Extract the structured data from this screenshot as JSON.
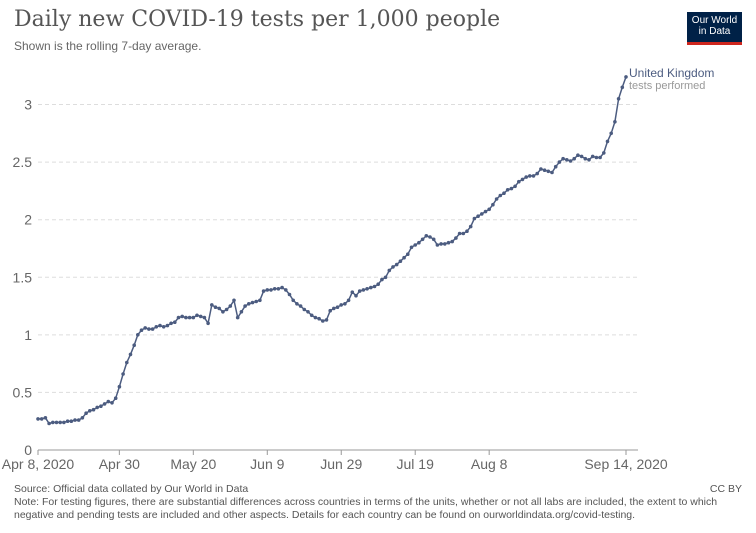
{
  "header": {
    "title": "Daily new COVID-19 tests per 1,000 people",
    "subtitle": "Shown is the rolling 7-day average."
  },
  "logo": {
    "line1": "Our World",
    "line2": "in Data",
    "colors": {
      "bg": "#002147",
      "accent": "#ce261e"
    }
  },
  "footer": {
    "source": "Source: Official data collated by Our World in Data",
    "license": "CC BY",
    "note": "Note: For testing figures, there are substantial differences across countries in terms of the units, whether or not all labs are included, the extent to which negative and pending tests are included and other aspects. Details for each country can be found on ourworldindata.org/covid-testing."
  },
  "chart_data": {
    "type": "line",
    "title": "Daily new COVID-19 tests per 1,000 people",
    "subtitle": "Shown is the rolling 7-day average.",
    "xlabel": "",
    "ylabel": "",
    "ylim": [
      0,
      3.3
    ],
    "grid": "horizontal dashed",
    "x_ticks": [
      "Apr 8, 2020",
      "Apr 30",
      "May 20",
      "Jun 9",
      "Jun 29",
      "Jul 19",
      "Aug 8",
      "Sep 14, 2020"
    ],
    "x_tick_dates": [
      "2020-04-08",
      "2020-04-30",
      "2020-05-20",
      "2020-06-09",
      "2020-06-29",
      "2020-07-19",
      "2020-08-08",
      "2020-09-14"
    ],
    "y_ticks": [
      0,
      0.5,
      1,
      1.5,
      2,
      2.5,
      3
    ],
    "y_tick_labels": [
      "0",
      "0.5",
      "1",
      "1.5",
      "2",
      "2.5",
      "3"
    ],
    "series": [
      {
        "name": "United Kingdom",
        "label": "United Kingdom",
        "sublabel": "tests performed",
        "color": "#4c5c80",
        "x_start": "2020-04-08",
        "x_end": "2020-09-14",
        "values": [
          0.27,
          0.27,
          0.28,
          0.23,
          0.24,
          0.24,
          0.24,
          0.24,
          0.25,
          0.25,
          0.26,
          0.26,
          0.28,
          0.32,
          0.34,
          0.35,
          0.37,
          0.38,
          0.4,
          0.42,
          0.41,
          0.45,
          0.55,
          0.66,
          0.76,
          0.83,
          0.91,
          1.0,
          1.04,
          1.06,
          1.05,
          1.05,
          1.07,
          1.08,
          1.07,
          1.08,
          1.1,
          1.11,
          1.15,
          1.16,
          1.15,
          1.15,
          1.15,
          1.17,
          1.16,
          1.15,
          1.1,
          1.26,
          1.24,
          1.23,
          1.2,
          1.22,
          1.25,
          1.3,
          1.15,
          1.2,
          1.25,
          1.27,
          1.28,
          1.29,
          1.3,
          1.38,
          1.39,
          1.39,
          1.4,
          1.4,
          1.41,
          1.39,
          1.35,
          1.3,
          1.27,
          1.25,
          1.22,
          1.2,
          1.17,
          1.15,
          1.14,
          1.12,
          1.13,
          1.21,
          1.23,
          1.24,
          1.26,
          1.27,
          1.3,
          1.37,
          1.34,
          1.38,
          1.39,
          1.4,
          1.41,
          1.42,
          1.44,
          1.48,
          1.5,
          1.56,
          1.59,
          1.61,
          1.64,
          1.67,
          1.7,
          1.76,
          1.78,
          1.8,
          1.83,
          1.86,
          1.85,
          1.83,
          1.78,
          1.79,
          1.79,
          1.8,
          1.81,
          1.84,
          1.88,
          1.88,
          1.9,
          1.94,
          2.01,
          2.03,
          2.05,
          2.07,
          2.09,
          2.13,
          2.18,
          2.21,
          2.23,
          2.26,
          2.27,
          2.29,
          2.33,
          2.35,
          2.37,
          2.38,
          2.38,
          2.4,
          2.44,
          2.43,
          2.42,
          2.41,
          2.46,
          2.5,
          2.53,
          2.52,
          2.51,
          2.53,
          2.56,
          2.55,
          2.53,
          2.52,
          2.55,
          2.54,
          2.54,
          2.58,
          2.68,
          2.75,
          2.85,
          3.05,
          3.15,
          3.24
        ]
      }
    ]
  }
}
